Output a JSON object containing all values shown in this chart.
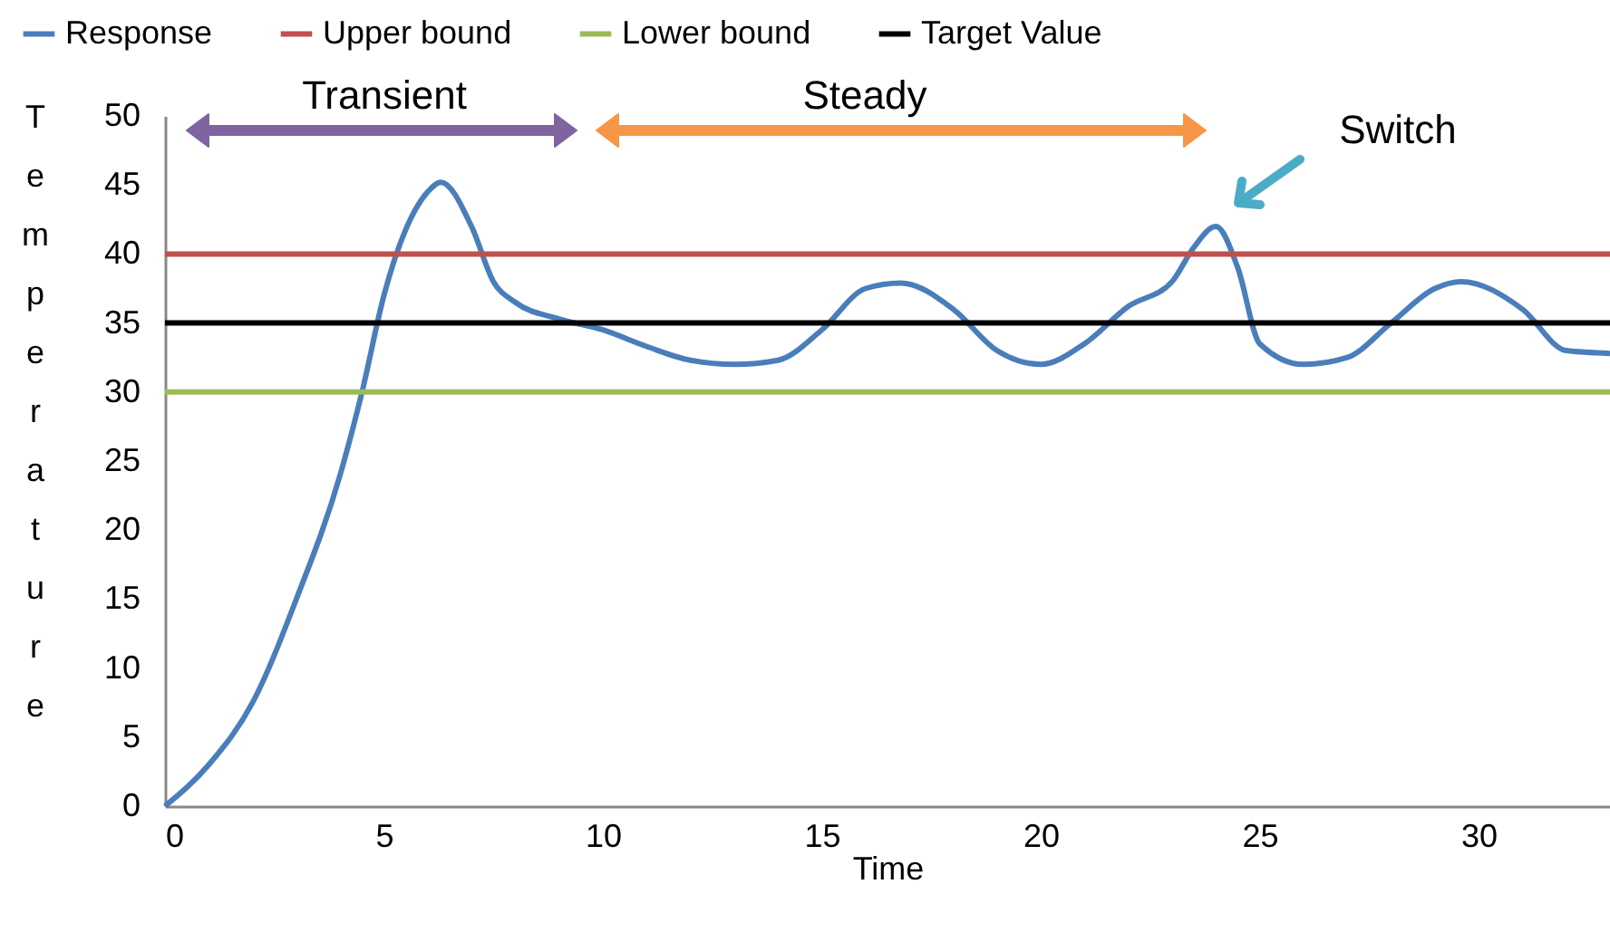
{
  "chart_data": {
    "type": "line",
    "xlabel": "Time",
    "ylabel": "Temperature",
    "xlim": [
      0,
      33
    ],
    "ylim": [
      0,
      50
    ],
    "xticks": [
      0,
      5,
      10,
      15,
      20,
      25,
      30
    ],
    "yticks": [
      0,
      5,
      10,
      15,
      20,
      25,
      30,
      35,
      40,
      45,
      50
    ],
    "grid": false,
    "legend": "top",
    "marker": "none",
    "line_style": "solid",
    "series": [
      {
        "name": "Response",
        "color": "#4a7ebb",
        "x": [
          0,
          1,
          2,
          3,
          4,
          4.5,
          5,
          6,
          6.3,
          7,
          7.5,
          8,
          9,
          10,
          11,
          12,
          13,
          14,
          15,
          16,
          16.8,
          18,
          19,
          20,
          21,
          22,
          23,
          23.5,
          24,
          24.5,
          25,
          26,
          27,
          28,
          29,
          29.6,
          31,
          32,
          33
        ],
        "values": [
          0,
          3,
          7.5,
          15,
          24,
          30,
          37,
          44.5,
          45.2,
          42,
          38,
          36.5,
          35.3,
          34.5,
          33.3,
          32.3,
          32,
          32.3,
          34.5,
          37.5,
          37.9,
          36,
          33,
          32,
          33.5,
          36.2,
          38,
          40.5,
          42,
          39,
          33.5,
          32,
          32.5,
          35,
          37.5,
          38,
          36,
          33,
          32.8
        ]
      }
    ],
    "ref_lines": [
      {
        "axis": "y",
        "value": 40,
        "label": "Upper bound",
        "color": "#c0504d"
      },
      {
        "axis": "y",
        "value": 30,
        "label": "Lower bound",
        "color": "#9bbb59"
      },
      {
        "axis": "y",
        "value": 35,
        "label": "Target Value",
        "color": "#000000"
      }
    ],
    "annotations": [
      "Transient",
      "Steady",
      "Switch"
    ]
  }
}
